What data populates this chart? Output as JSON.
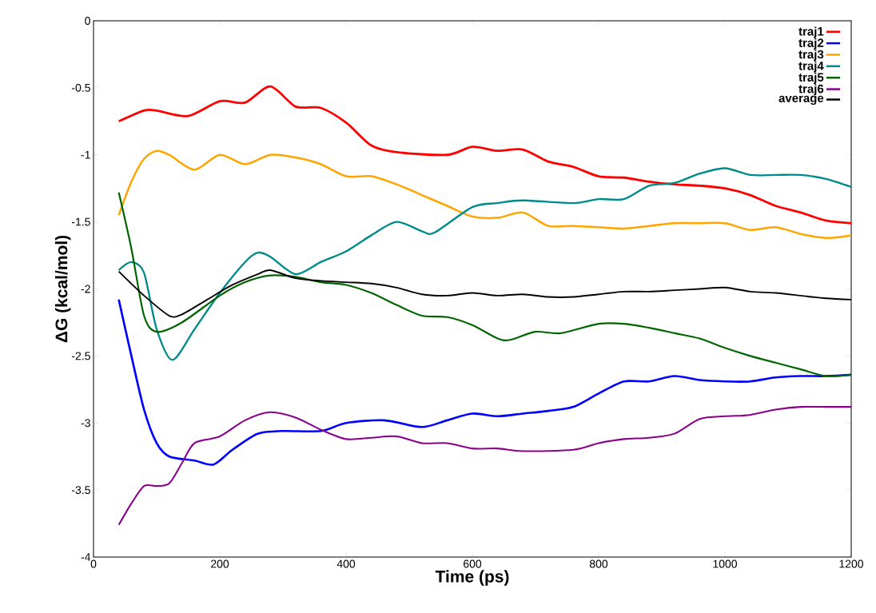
{
  "chart_data": {
    "type": "line",
    "xlabel": "Time (ps)",
    "ylabel": "ΔG (kcal/mol)",
    "xlim": [
      0,
      1200
    ],
    "ylim": [
      -4,
      0
    ],
    "xticks": [
      0,
      200,
      400,
      600,
      800,
      1000,
      1200
    ],
    "yticks": [
      -4,
      -3.5,
      -3,
      -2.5,
      -2,
      -1.5,
      -1,
      -0.5,
      0
    ],
    "grid": false,
    "legend": "top right",
    "line_style": "solid",
    "marker": "none",
    "series": [
      {
        "name": "traj1",
        "color": "#ff0000",
        "x": [
          40,
          80,
          100,
          150,
          200,
          240,
          280,
          320,
          360,
          400,
          440,
          480,
          560,
          600,
          640,
          680,
          720,
          760,
          800,
          840,
          880,
          920,
          960,
          1000,
          1040,
          1080,
          1120,
          1160,
          1200
        ],
        "values": [
          -0.75,
          -0.67,
          -0.67,
          -0.71,
          -0.6,
          -0.61,
          -0.49,
          -0.64,
          -0.65,
          -0.76,
          -0.93,
          -0.98,
          -1.0,
          -0.94,
          -0.97,
          -0.96,
          -1.05,
          -1.09,
          -1.16,
          -1.17,
          -1.2,
          -1.22,
          -1.23,
          -1.25,
          -1.3,
          -1.38,
          -1.43,
          -1.49,
          -1.51
        ]
      },
      {
        "name": "traj2",
        "color": "#0000ff",
        "x": [
          40,
          60,
          80,
          100,
          120,
          160,
          190,
          220,
          260,
          300,
          360,
          400,
          460,
          520,
          560,
          600,
          640,
          680,
          720,
          760,
          800,
          840,
          880,
          920,
          960,
          1000,
          1040,
          1080,
          1120,
          1160,
          1200
        ],
        "values": [
          -2.08,
          -2.5,
          -2.9,
          -3.15,
          -3.25,
          -3.28,
          -3.31,
          -3.2,
          -3.08,
          -3.06,
          -3.06,
          -3.0,
          -2.98,
          -3.03,
          -2.98,
          -2.93,
          -2.95,
          -2.93,
          -2.91,
          -2.88,
          -2.78,
          -2.69,
          -2.69,
          -2.65,
          -2.68,
          -2.69,
          -2.69,
          -2.66,
          -2.65,
          -2.65,
          -2.64
        ]
      },
      {
        "name": "traj3",
        "color": "#ffa500",
        "x": [
          40,
          60,
          80,
          100,
          120,
          160,
          200,
          240,
          280,
          320,
          360,
          400,
          440,
          480,
          520,
          560,
          600,
          640,
          680,
          720,
          760,
          800,
          840,
          880,
          920,
          960,
          1000,
          1040,
          1080,
          1120,
          1160,
          1200
        ],
        "values": [
          -1.45,
          -1.2,
          -1.03,
          -0.97,
          -1.0,
          -1.11,
          -1.0,
          -1.07,
          -1.0,
          -1.02,
          -1.07,
          -1.16,
          -1.16,
          -1.22,
          -1.3,
          -1.38,
          -1.46,
          -1.47,
          -1.43,
          -1.53,
          -1.53,
          -1.54,
          -1.55,
          -1.53,
          -1.51,
          -1.51,
          -1.51,
          -1.56,
          -1.54,
          -1.59,
          -1.62,
          -1.6
        ]
      },
      {
        "name": "traj4",
        "color": "#008b8b",
        "x": [
          40,
          60,
          80,
          100,
          125,
          160,
          200,
          240,
          260,
          280,
          320,
          360,
          400,
          440,
          480,
          520,
          540,
          600,
          640,
          680,
          760,
          800,
          840,
          880,
          920,
          960,
          1000,
          1040,
          1080,
          1120,
          1160,
          1200
        ],
        "values": [
          -1.86,
          -1.8,
          -1.88,
          -2.3,
          -2.53,
          -2.3,
          -2.03,
          -1.8,
          -1.73,
          -1.76,
          -1.89,
          -1.8,
          -1.72,
          -1.6,
          -1.5,
          -1.57,
          -1.58,
          -1.39,
          -1.36,
          -1.34,
          -1.36,
          -1.33,
          -1.33,
          -1.23,
          -1.21,
          -1.14,
          -1.1,
          -1.15,
          -1.15,
          -1.15,
          -1.18,
          -1.24
        ]
      },
      {
        "name": "traj5",
        "color": "#006400",
        "x": [
          40,
          60,
          80,
          100,
          140,
          200,
          240,
          280,
          320,
          360,
          400,
          440,
          480,
          520,
          560,
          600,
          640,
          660,
          700,
          740,
          800,
          840,
          880,
          920,
          960,
          1000,
          1040,
          1080,
          1120,
          1160,
          1200
        ],
        "values": [
          -1.28,
          -1.7,
          -2.2,
          -2.32,
          -2.25,
          -2.05,
          -1.95,
          -1.9,
          -1.91,
          -1.95,
          -1.97,
          -2.03,
          -2.12,
          -2.2,
          -2.21,
          -2.27,
          -2.37,
          -2.38,
          -2.32,
          -2.33,
          -2.26,
          -2.26,
          -2.29,
          -2.33,
          -2.37,
          -2.44,
          -2.5,
          -2.55,
          -2.6,
          -2.65,
          -2.64
        ]
      },
      {
        "name": "traj6",
        "color": "#8b008b",
        "x": [
          40,
          60,
          80,
          100,
          120,
          140,
          160,
          200,
          240,
          280,
          320,
          360,
          400,
          440,
          480,
          520,
          560,
          600,
          640,
          680,
          760,
          800,
          840,
          880,
          920,
          960,
          1000,
          1040,
          1080,
          1120,
          1160,
          1200
        ],
        "values": [
          -3.76,
          -3.6,
          -3.47,
          -3.47,
          -3.45,
          -3.3,
          -3.15,
          -3.1,
          -2.98,
          -2.92,
          -2.96,
          -3.05,
          -3.12,
          -3.11,
          -3.1,
          -3.15,
          -3.15,
          -3.19,
          -3.19,
          -3.21,
          -3.2,
          -3.15,
          -3.12,
          -3.11,
          -3.08,
          -2.97,
          -2.95,
          -2.94,
          -2.9,
          -2.88,
          -2.88,
          -2.88
        ]
      },
      {
        "name": "average",
        "color": "#000000",
        "x": [
          40,
          80,
          120,
          140,
          180,
          220,
          260,
          280,
          320,
          360,
          400,
          440,
          480,
          520,
          560,
          600,
          640,
          680,
          720,
          760,
          800,
          840,
          880,
          920,
          960,
          1000,
          1040,
          1080,
          1120,
          1160,
          1200
        ],
        "values": [
          -1.87,
          -2.05,
          -2.2,
          -2.19,
          -2.08,
          -1.97,
          -1.89,
          -1.86,
          -1.92,
          -1.94,
          -1.95,
          -1.96,
          -1.99,
          -2.04,
          -2.05,
          -2.03,
          -2.05,
          -2.04,
          -2.06,
          -2.06,
          -2.04,
          -2.02,
          -2.02,
          -2.01,
          -2.0,
          -1.99,
          -2.02,
          -2.03,
          -2.05,
          -2.07,
          -2.08
        ]
      }
    ]
  }
}
